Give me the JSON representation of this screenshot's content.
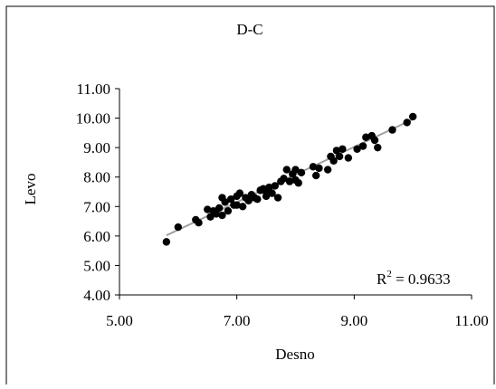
{
  "chart_data": {
    "type": "scatter",
    "title": "D-C",
    "xlabel": "Desno",
    "ylabel": "Levo",
    "xlim": [
      5.0,
      11.0
    ],
    "ylim": [
      4.0,
      11.0
    ],
    "x_ticks": [
      "5.00",
      "7.00",
      "9.00",
      "11.00"
    ],
    "y_ticks": [
      "4.00",
      "5.00",
      "6.00",
      "7.00",
      "8.00",
      "9.00",
      "10.00",
      "11.00"
    ],
    "annotation": {
      "base": "R",
      "sup": "2",
      "rest": " = 0.9633"
    },
    "grid": false,
    "legend": "none",
    "trendline": {
      "x": [
        5.8,
        10.0
      ],
      "y": [
        6.02,
        9.96
      ]
    },
    "colors": {
      "points": "#000000",
      "trendline": "#a0a0a0",
      "axes": "#000000",
      "frame": "#000000"
    },
    "points": {
      "x": [
        5.8,
        6.0,
        6.3,
        6.35,
        6.5,
        6.55,
        6.6,
        6.65,
        6.7,
        6.75,
        6.8,
        6.85,
        6.9,
        6.95,
        7.0,
        7.05,
        7.1,
        7.15,
        7.2,
        7.25,
        7.3,
        7.35,
        7.4,
        7.45,
        7.5,
        7.55,
        7.6,
        7.65,
        7.7,
        7.75,
        7.8,
        7.85,
        7.9,
        7.95,
        8.0,
        8.05,
        8.1,
        8.3,
        8.35,
        8.4,
        8.55,
        8.6,
        8.65,
        8.7,
        8.75,
        8.8,
        8.9,
        9.05,
        9.15,
        9.2,
        9.3,
        9.35,
        9.4,
        9.65,
        9.9,
        10.0,
        7.0,
        7.5,
        6.75,
        8.0
      ],
      "y": [
        5.8,
        6.3,
        6.55,
        6.45,
        6.9,
        6.65,
        6.85,
        6.75,
        6.95,
        7.3,
        7.15,
        6.85,
        7.25,
        7.05,
        7.35,
        7.45,
        7.0,
        7.3,
        7.2,
        7.4,
        7.3,
        7.25,
        7.55,
        7.6,
        7.5,
        7.65,
        7.45,
        7.7,
        7.3,
        7.85,
        7.95,
        8.25,
        7.85,
        8.1,
        8.25,
        7.8,
        8.15,
        8.35,
        8.05,
        8.3,
        8.25,
        8.7,
        8.55,
        8.9,
        8.7,
        8.95,
        8.65,
        8.95,
        9.05,
        9.35,
        9.4,
        9.25,
        9.0,
        9.6,
        9.85,
        10.05,
        7.05,
        7.35,
        6.7,
        7.9
      ]
    }
  }
}
